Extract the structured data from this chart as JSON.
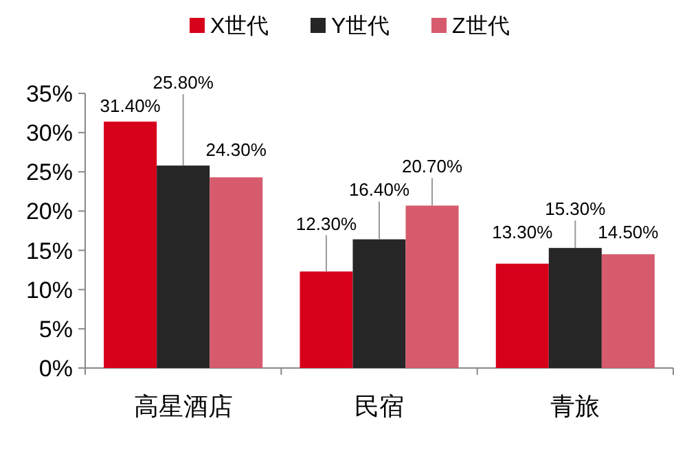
{
  "chart_data": {
    "type": "bar",
    "categories": [
      "高星酒店",
      "民宿",
      "青旅"
    ],
    "series": [
      {
        "name": "X世代",
        "color": "#d7001b",
        "values": [
          31.4,
          12.3,
          13.3
        ],
        "value_labels": [
          "31.40%",
          "12.30%",
          "13.30%"
        ]
      },
      {
        "name": "Y世代",
        "color": "#262626",
        "values": [
          25.8,
          16.4,
          15.3
        ],
        "value_labels": [
          "25.80%",
          "16.40%",
          "15.30%"
        ]
      },
      {
        "name": "Z世代",
        "color": "#d65b6c",
        "values": [
          24.3,
          20.7,
          14.5
        ],
        "value_labels": [
          "24.30%",
          "20.70%",
          "14.50%"
        ]
      }
    ],
    "ylim": [
      0,
      35
    ],
    "yticks": [
      {
        "value": 0,
        "label": "0%"
      },
      {
        "value": 5,
        "label": "5%"
      },
      {
        "value": 10,
        "label": "10%"
      },
      {
        "value": 15,
        "label": "15%"
      },
      {
        "value": 20,
        "label": "20%"
      },
      {
        "value": 25,
        "label": "25%"
      },
      {
        "value": 30,
        "label": "30%"
      },
      {
        "value": 35,
        "label": "35%"
      }
    ],
    "legend": "top"
  }
}
